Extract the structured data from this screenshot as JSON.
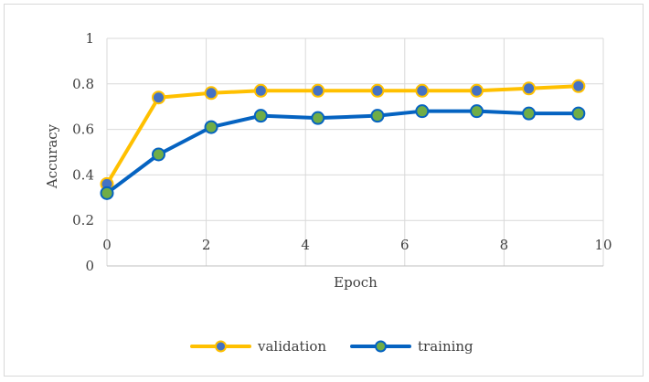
{
  "chart_data": {
    "type": "scatter",
    "title": "",
    "xlabel": "Epoch",
    "ylabel": "Accuracy",
    "xlim": [
      0,
      10
    ],
    "ylim": [
      0,
      1
    ],
    "x_ticks": [
      "0",
      "2",
      "4",
      "6",
      "8",
      "10"
    ],
    "y_ticks": [
      "0",
      "0.2",
      "0.4",
      "0.6",
      "0.8",
      "1"
    ],
    "grid": true,
    "legend_position": "bottom",
    "series": [
      {
        "name": "validation",
        "line_color": "#FFC000",
        "marker_fill": "#4472C4",
        "marker_edge": "#FFC000",
        "x": [
          0,
          1.04,
          2.1,
          3.1,
          4.25,
          5.45,
          6.35,
          7.45,
          8.5,
          9.5
        ],
        "y": [
          0.36,
          0.74,
          0.76,
          0.77,
          0.77,
          0.77,
          0.77,
          0.77,
          0.78,
          0.79
        ]
      },
      {
        "name": "training",
        "line_color": "#0563C1",
        "marker_fill": "#70AD47",
        "marker_edge": "#0563C1",
        "x": [
          0,
          1.04,
          2.1,
          3.1,
          4.25,
          5.45,
          6.35,
          7.45,
          8.5,
          9.5
        ],
        "y": [
          0.32,
          0.49,
          0.61,
          0.66,
          0.65,
          0.66,
          0.68,
          0.68,
          0.67,
          0.67
        ]
      }
    ]
  }
}
